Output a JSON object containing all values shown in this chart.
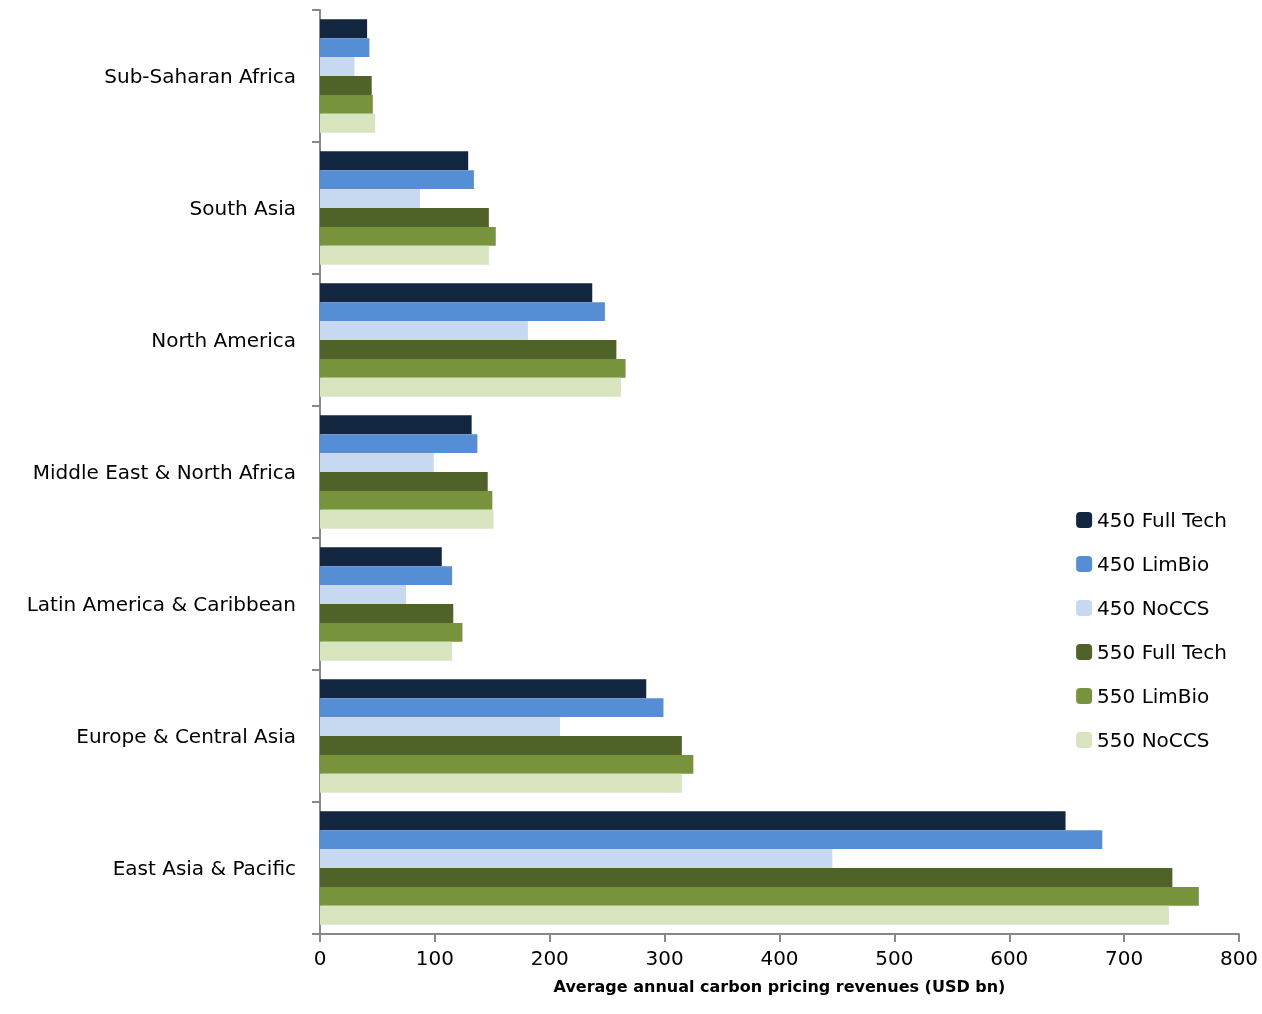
{
  "chart_data": {
    "type": "bar",
    "orientation": "horizontal",
    "xlabel": "Average annual carbon pricing revenues (USD bn)",
    "categories": [
      "Sub-Saharan Africa",
      "South Asia",
      "North America",
      "Middle East & North Africa",
      "Latin America & Caribbean",
      "Europe & Central Asia",
      "East Asia & Pacific"
    ],
    "series": [
      {
        "name": "450 Full Tech",
        "color": "#12263f",
        "values": [
          41,
          129,
          237,
          132,
          106,
          284,
          649
        ]
      },
      {
        "name": "450 LimBio",
        "color": "#558ed5",
        "values": [
          43,
          134,
          248,
          137,
          115,
          299,
          681
        ]
      },
      {
        "name": "450 NoCCS",
        "color": "#c6d9f1",
        "values": [
          30,
          87,
          181,
          99,
          75,
          209,
          446
        ]
      },
      {
        "name": "550 Full Tech",
        "color": "#4f6228",
        "values": [
          45,
          147,
          258,
          146,
          116,
          315,
          742
        ]
      },
      {
        "name": "550 LimBio",
        "color": "#77933c",
        "values": [
          46,
          153,
          266,
          150,
          124,
          325,
          765
        ]
      },
      {
        "name": "550 NoCCS",
        "color": "#d7e4bd",
        "values": [
          48,
          147,
          262,
          151,
          115,
          315,
          739
        ]
      }
    ],
    "xlim": [
      0,
      800
    ],
    "xticks": [
      0,
      100,
      200,
      300,
      400,
      500,
      600,
      700,
      800
    ],
    "grid": false,
    "legend": "right"
  }
}
